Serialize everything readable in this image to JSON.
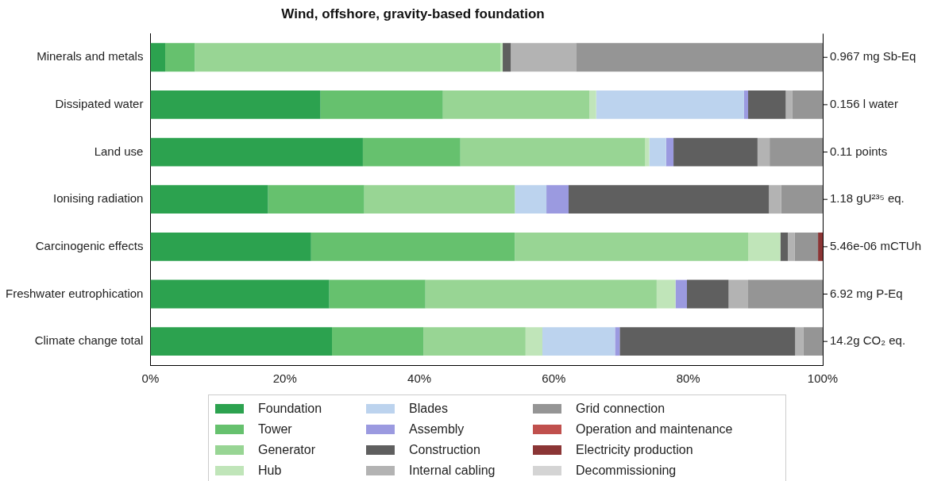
{
  "chart_data": {
    "type": "bar",
    "orientation": "horizontal",
    "stacked": true,
    "title": "Wind, offshore, gravity-based foundation",
    "categories": [
      "Minerals and metals",
      "Dissipated water",
      "Land use",
      "Ionising radiation",
      "Carcinogenic effects",
      "Freshwater eutrophication",
      "Climate change total"
    ],
    "series": [
      {
        "name": "Foundation",
        "color": "#2ca24f",
        "values": [
          2.2,
          25.3,
          31.6,
          17.5,
          23.9,
          26.6,
          27.0
        ]
      },
      {
        "name": "Tower",
        "color": "#66c16e",
        "values": [
          4.4,
          18.2,
          14.5,
          14.3,
          30.3,
          14.3,
          13.6
        ]
      },
      {
        "name": "Generator",
        "color": "#98d594",
        "values": [
          45.5,
          21.8,
          27.5,
          22.4,
          34.7,
          34.4,
          15.2
        ]
      },
      {
        "name": "Hub",
        "color": "#c0e5b9",
        "values": [
          0.3,
          1.0,
          0.6,
          0,
          4.8,
          2.8,
          2.5
        ]
      },
      {
        "name": "Blades",
        "color": "#bcd3ee",
        "values": [
          0,
          22.0,
          2.5,
          4.7,
          0,
          0,
          10.8
        ]
      },
      {
        "name": "Assembly",
        "color": "#9b9ae0",
        "values": [
          0,
          0.6,
          1.1,
          3.3,
          0,
          1.7,
          0.7
        ]
      },
      {
        "name": "Construction",
        "color": "#5f5f5f",
        "values": [
          1.2,
          5.6,
          12.5,
          29.8,
          1.1,
          6.2,
          26.1
        ]
      },
      {
        "name": "Internal cabling",
        "color": "#b3b3b3",
        "values": [
          9.7,
          1.0,
          1.8,
          1.8,
          1.0,
          2.9,
          1.2
        ]
      },
      {
        "name": "Grid connection",
        "color": "#959595",
        "values": [
          36.7,
          4.5,
          7.9,
          6.2,
          3.5,
          11.1,
          2.9
        ]
      },
      {
        "name": "Operation and maintenance",
        "color": "#c0504d",
        "values": [
          0,
          0,
          0,
          0,
          0,
          0,
          0
        ]
      },
      {
        "name": "Electricity production",
        "color": "#8b3535",
        "values": [
          0,
          0,
          0,
          0,
          0.7,
          0,
          0
        ]
      },
      {
        "name": "Decommissioning",
        "color": "#d4d4d4",
        "values": [
          0,
          0,
          0,
          0,
          0,
          0,
          0
        ]
      }
    ],
    "xlim": [
      0,
      100
    ],
    "xticks": [
      {
        "value": 0,
        "label": "0%"
      },
      {
        "value": 20,
        "label": "20%"
      },
      {
        "value": 40,
        "label": "40%"
      },
      {
        "value": 60,
        "label": "60%"
      },
      {
        "value": 80,
        "label": "80%"
      },
      {
        "value": 100,
        "label": "100%"
      }
    ],
    "annotations": [
      "0.967 mg Sb-Eq",
      "0.156 l water",
      "0.11 points",
      "1.18 gU²³⁵ eq.",
      "5.46e-06 mCTUh",
      "6.92 mg P-Eq",
      "14.2g CO₂ eq."
    ],
    "grid": false,
    "legend": "bottom"
  }
}
